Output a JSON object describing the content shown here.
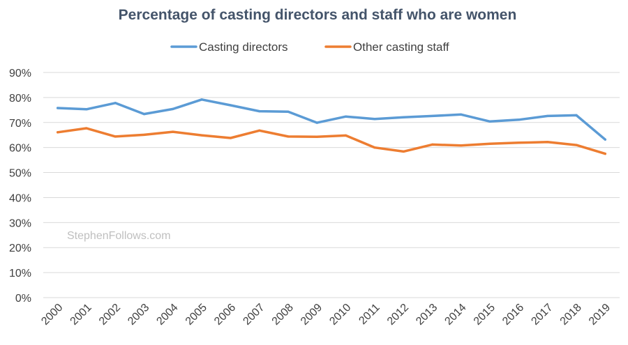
{
  "chart_data": {
    "type": "line",
    "title": "Percentage of casting directors and staff who are women",
    "watermark": "StephenFollows.com",
    "xlabel": "",
    "ylabel": "",
    "ylim": [
      0,
      90
    ],
    "yticks": [
      0,
      10,
      20,
      30,
      40,
      50,
      60,
      70,
      80,
      90
    ],
    "ytick_labels": [
      "0%",
      "10%",
      "20%",
      "30%",
      "40%",
      "50%",
      "60%",
      "70%",
      "80%",
      "90%"
    ],
    "grid": true,
    "legend_position": "top-center",
    "categories": [
      "2000",
      "2001",
      "2002",
      "2003",
      "2004",
      "2005",
      "2006",
      "2007",
      "2008",
      "2009",
      "2010",
      "2011",
      "2012",
      "2013",
      "2014",
      "2015",
      "2016",
      "2017",
      "2018",
      "2019"
    ],
    "series": [
      {
        "name": "Casting directors",
        "color": "#5b9bd5",
        "values": [
          75.8,
          75.3,
          77.8,
          73.4,
          75.4,
          79.2,
          76.9,
          74.5,
          74.3,
          69.9,
          72.4,
          71.4,
          72.1,
          72.6,
          73.2,
          70.4,
          71.1,
          72.6,
          72.9,
          63.2
        ]
      },
      {
        "name": "Other casting staff",
        "color": "#ed7d31",
        "values": [
          66.1,
          67.7,
          64.4,
          65.1,
          66.3,
          64.9,
          63.8,
          66.8,
          64.4,
          64.3,
          64.8,
          60.0,
          58.4,
          61.2,
          60.8,
          61.5,
          61.9,
          62.2,
          61.0,
          57.5
        ]
      }
    ]
  }
}
